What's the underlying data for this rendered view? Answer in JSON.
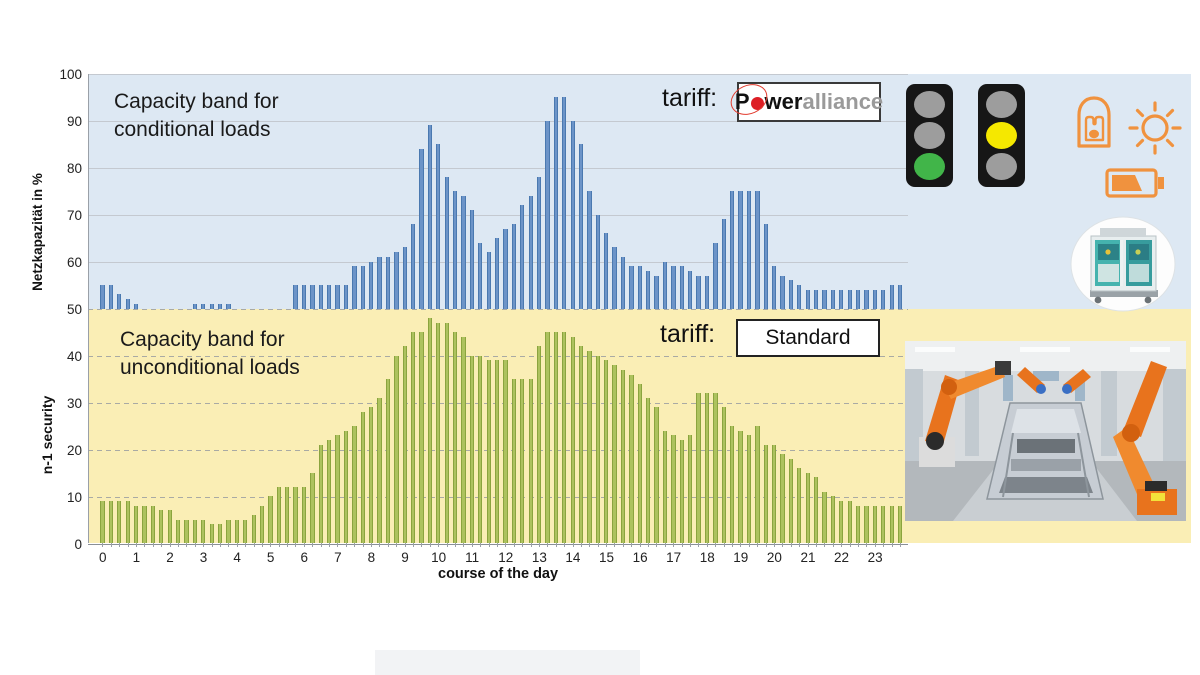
{
  "colors": {
    "band_blue_bg": "#dde8f3",
    "band_yellow_bg": "#faeeb5",
    "bar_blue": "#6c94c8",
    "bar_green": "#adc25e",
    "accent_orange": "#f0923e",
    "traffic_green": "#41b549",
    "traffic_yellow": "#f5e800",
    "traffic_unlit": "#9d9d9d",
    "logo_red": "#dd1f26"
  },
  "y_axis": {
    "ticks": [
      100,
      90,
      80,
      70,
      60,
      50,
      40,
      30,
      20,
      10,
      0
    ],
    "title_upper": "Netzkapazität in %",
    "title_lower": "n-1 security"
  },
  "x_axis": {
    "ticks": [
      0,
      1,
      2,
      3,
      4,
      5,
      6,
      7,
      8,
      9,
      10,
      11,
      12,
      13,
      14,
      15,
      16,
      17,
      18,
      19,
      20,
      21,
      22,
      23
    ],
    "title": "course of the day"
  },
  "annotations": {
    "blue_band_title": [
      "Capacity band for",
      "conditional loads"
    ],
    "yellow_band_title": [
      "Capacity band for",
      "unconditional loads"
    ],
    "tariff_blue_label": "tariff:",
    "tariff_yellow_label": "tariff:",
    "tariff_blue_brand_p": "P",
    "tariff_blue_brand_rest": "wer",
    "tariff_blue_brand_gray": "alliance",
    "tariff_yellow_value": "Standard"
  },
  "right_panel_icons": [
    "traffic-light-green-active",
    "traffic-light-yellow-active",
    "ev-plug-icon",
    "sun-icon",
    "battery-icon",
    "heat-pump-machine-photo",
    "car-factory-robots-photo"
  ],
  "chart_data": {
    "type": "bar",
    "x": "time of day in quarter-hour steps (0:00 - 23:45, 96 bars)",
    "ylim": [
      0,
      100
    ],
    "grid": "horizontal every 10 units; solid in upper band, dashed in lower band",
    "legend_position": "labels inside plot bands",
    "series": [
      {
        "name": "Capacity band for conditional loads (tariff: Poweralliance)",
        "baseline": 50,
        "color": "#6c94c8",
        "values": [
          55,
          55,
          53,
          52,
          51,
          50,
          50,
          50,
          50,
          50,
          50,
          51,
          51,
          51,
          51,
          51,
          50,
          50,
          50,
          50,
          50,
          50,
          50,
          55,
          55,
          55,
          55,
          55,
          55,
          55,
          59,
          59,
          60,
          61,
          61,
          62,
          63,
          68,
          84,
          89,
          85,
          78,
          75,
          74,
          71,
          64,
          62,
          65,
          67,
          68,
          72,
          74,
          78,
          90,
          95,
          95,
          90,
          85,
          75,
          70,
          66,
          63,
          61,
          59,
          59,
          58,
          57,
          60,
          59,
          59,
          58,
          57,
          57,
          64,
          69,
          75,
          75,
          75,
          75,
          68,
          59,
          57,
          56,
          55,
          54,
          54,
          54,
          54,
          54,
          54,
          54,
          54,
          54,
          54,
          55,
          55
        ]
      },
      {
        "name": "Capacity band for unconditional loads (tariff: Standard)",
        "baseline": 0,
        "color": "#adc25e",
        "values": [
          9,
          9,
          9,
          9,
          8,
          8,
          8,
          7,
          7,
          5,
          5,
          5,
          5,
          4,
          4,
          5,
          5,
          5,
          6,
          8,
          10,
          12,
          12,
          12,
          12,
          15,
          21,
          22,
          23,
          24,
          25,
          28,
          29,
          31,
          35,
          40,
          42,
          45,
          45,
          48,
          47,
          47,
          45,
          44,
          40,
          40,
          39,
          39,
          39,
          35,
          35,
          35,
          42,
          45,
          45,
          45,
          44,
          42,
          41,
          40,
          39,
          38,
          37,
          36,
          34,
          31,
          29,
          24,
          23,
          22,
          23,
          32,
          32,
          32,
          29,
          25,
          24,
          23,
          25,
          21,
          21,
          19,
          18,
          16,
          15,
          14,
          11,
          10,
          9,
          9,
          8,
          8,
          8,
          8,
          8,
          8
        ]
      }
    ]
  }
}
